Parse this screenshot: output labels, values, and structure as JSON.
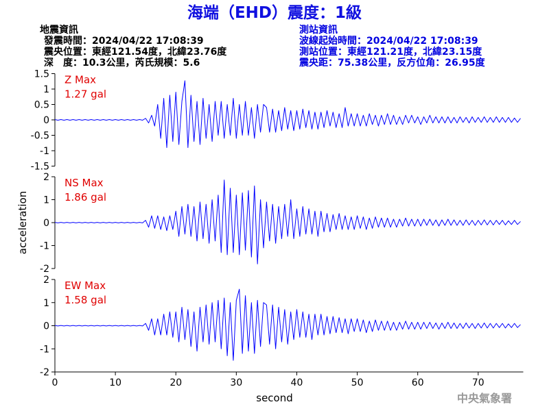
{
  "title": "海端（EHD）震度：1級",
  "header": {
    "left": [
      "地震資訊",
      "發震時間：2024/04/22 17:08:39",
      "震央位置：東經121.54度，北緯23.76度",
      "深　度：10.3公里，芮氏規模：5.6"
    ],
    "right": [
      "測站資訊",
      "波線起始時間：2024/04/22 17:08:39",
      "測站位置：東經121.21度，北緯23.15度",
      "震央距：75.38公里，反方位角：26.95度"
    ]
  },
  "xlabel": "second",
  "ylabel": "acceleration",
  "footer": "中央氣象署",
  "chart_data": [
    {
      "type": "line",
      "label": "Z Max",
      "max_label": "1.27 gal",
      "color": "#0000ff",
      "xlim": [
        0,
        77
      ],
      "xticks": [
        0,
        10,
        20,
        30,
        40,
        50,
        60,
        70
      ],
      "ylim": [
        -1.5,
        1.5
      ],
      "yticks": [
        -1.5,
        -1,
        -0.5,
        0,
        0.5,
        1,
        1.5
      ],
      "x": [
        0,
        0.5,
        1,
        1.5,
        2,
        2.5,
        3,
        3.5,
        4,
        4.5,
        5,
        5.5,
        6,
        6.5,
        7,
        7.5,
        8,
        8.5,
        9,
        9.5,
        10,
        10.5,
        11,
        11.5,
        12,
        12.5,
        13,
        13.5,
        14,
        14.5,
        15,
        15.5,
        16,
        16.5,
        17,
        17.5,
        18,
        18.5,
        19,
        19.5,
        20,
        20.5,
        21,
        21.5,
        22,
        22.5,
        23,
        23.5,
        24,
        24.5,
        25,
        25.5,
        26,
        26.5,
        27,
        27.5,
        28,
        28.5,
        29,
        29.5,
        30,
        30.5,
        31,
        31.5,
        32,
        32.5,
        33,
        33.5,
        34,
        34.5,
        35,
        35.5,
        36,
        36.5,
        37,
        37.5,
        38,
        38.5,
        39,
        39.5,
        40,
        40.5,
        41,
        41.5,
        42,
        42.5,
        43,
        43.5,
        44,
        44.5,
        45,
        45.5,
        46,
        46.5,
        47,
        47.5,
        48,
        48.5,
        49,
        49.5,
        50,
        50.5,
        51,
        51.5,
        52,
        52.5,
        53,
        53.5,
        54,
        54.5,
        55,
        55.5,
        56,
        56.5,
        57,
        57.5,
        58,
        58.5,
        59,
        59.5,
        60,
        60.5,
        61,
        61.5,
        62,
        62.5,
        63,
        63.5,
        64,
        64.5,
        65,
        65.5,
        66,
        66.5,
        67,
        67.5,
        68,
        68.5,
        69,
        69.5,
        70,
        70.5,
        71,
        71.5,
        72,
        72.5,
        73,
        73.5,
        74,
        74.5,
        75,
        75.5,
        76,
        76.5,
        77
      ],
      "values": [
        0.01,
        -0.01,
        0.01,
        -0.01,
        0.01,
        -0.01,
        0.01,
        -0.01,
        0.01,
        -0.01,
        0.01,
        -0.01,
        0.01,
        -0.01,
        0.01,
        -0.01,
        0.01,
        -0.01,
        0.01,
        -0.01,
        0.01,
        -0.01,
        0.01,
        -0.01,
        0.01,
        -0.01,
        0.01,
        -0.01,
        0.01,
        -0.01,
        0.05,
        -0.1,
        0.15,
        -0.2,
        0.5,
        -0.6,
        0.7,
        -0.9,
        0.8,
        -0.7,
        0.9,
        -0.8,
        0.6,
        1.27,
        -0.9,
        0.8,
        -0.7,
        0.6,
        -0.8,
        0.7,
        -0.6,
        0.5,
        -0.7,
        0.6,
        -0.5,
        0.6,
        -0.6,
        0.5,
        -0.5,
        0.7,
        -0.6,
        0.5,
        -0.5,
        0.6,
        -0.5,
        0.4,
        -0.6,
        0.5,
        -0.4,
        0.5,
        0.4,
        -0.4,
        0.35,
        -0.4,
        0.3,
        -0.35,
        0.4,
        -0.3,
        0.3,
        -0.35,
        0.3,
        -0.3,
        0.35,
        -0.25,
        0.3,
        -0.3,
        0.25,
        -0.3,
        0.25,
        -0.25,
        0.3,
        -0.2,
        0.25,
        -0.25,
        0.2,
        -0.25,
        0.4,
        -0.2,
        0.2,
        -0.2,
        0.2,
        -0.2,
        0.15,
        -0.2,
        0.2,
        -0.15,
        0.15,
        -0.2,
        0.15,
        -0.15,
        0.2,
        -0.15,
        0.15,
        -0.15,
        0.1,
        -0.15,
        0.15,
        -0.1,
        0.15,
        -0.1,
        0.1,
        -0.15,
        0.1,
        -0.1,
        0.15,
        -0.1,
        0.1,
        -0.1,
        0.1,
        -0.1,
        0.1,
        -0.1,
        0.08,
        -0.1,
        0.1,
        -0.08,
        0.08,
        -0.1,
        0.1,
        -0.08,
        0.08,
        -0.08,
        0.1,
        -0.08,
        0.08,
        -0.08,
        0.1,
        -0.08,
        0.08,
        -0.08,
        0.08,
        -0.08,
        0.06,
        -0.08,
        0.05
      ]
    },
    {
      "type": "line",
      "label": "NS Max",
      "max_label": "1.86 gal",
      "color": "#0000ff",
      "xlim": [
        0,
        77
      ],
      "xticks": [
        0,
        10,
        20,
        30,
        40,
        50,
        60,
        70
      ],
      "ylim": [
        -2,
        2
      ],
      "yticks": [
        -2,
        -1,
        0,
        1,
        2
      ],
      "x": [
        0,
        0.5,
        1,
        1.5,
        2,
        2.5,
        3,
        3.5,
        4,
        4.5,
        5,
        5.5,
        6,
        6.5,
        7,
        7.5,
        8,
        8.5,
        9,
        9.5,
        10,
        10.5,
        11,
        11.5,
        12,
        12.5,
        13,
        13.5,
        14,
        14.5,
        15,
        15.5,
        16,
        16.5,
        17,
        17.5,
        18,
        18.5,
        19,
        19.5,
        20,
        20.5,
        21,
        21.5,
        22,
        22.5,
        23,
        23.5,
        24,
        24.5,
        25,
        25.5,
        26,
        26.5,
        27,
        27.5,
        28,
        28.5,
        29,
        29.5,
        30,
        30.5,
        31,
        31.5,
        32,
        32.5,
        33,
        33.5,
        34,
        34.5,
        35,
        35.5,
        36,
        36.5,
        37,
        37.5,
        38,
        38.5,
        39,
        39.5,
        40,
        40.5,
        41,
        41.5,
        42,
        42.5,
        43,
        43.5,
        44,
        44.5,
        45,
        45.5,
        46,
        46.5,
        47,
        47.5,
        48,
        48.5,
        49,
        49.5,
        50,
        50.5,
        51,
        51.5,
        52,
        52.5,
        53,
        53.5,
        54,
        54.5,
        55,
        55.5,
        56,
        56.5,
        57,
        57.5,
        58,
        58.5,
        59,
        59.5,
        60,
        60.5,
        61,
        61.5,
        62,
        62.5,
        63,
        63.5,
        64,
        64.5,
        65,
        65.5,
        66,
        66.5,
        67,
        67.5,
        68,
        68.5,
        69,
        69.5,
        70,
        70.5,
        71,
        71.5,
        72,
        72.5,
        73,
        73.5,
        74,
        74.5,
        75,
        75.5,
        76,
        76.5,
        77
      ],
      "values": [
        0.01,
        -0.01,
        0.01,
        -0.01,
        0.01,
        -0.01,
        0.01,
        -0.01,
        0.01,
        -0.01,
        0.01,
        -0.01,
        0.01,
        -0.01,
        0.01,
        -0.01,
        0.01,
        -0.01,
        0.01,
        -0.01,
        0.01,
        -0.01,
        0.01,
        -0.01,
        0.01,
        -0.01,
        0.01,
        -0.01,
        0.01,
        -0.01,
        0.1,
        -0.2,
        0.3,
        -0.25,
        0.3,
        -0.3,
        0.25,
        -0.35,
        0.3,
        -0.3,
        0.5,
        -0.6,
        0.7,
        -0.5,
        0.8,
        -0.6,
        0.7,
        -0.8,
        0.9,
        -0.7,
        0.8,
        -0.9,
        1.0,
        -0.8,
        1.2,
        -1.3,
        1.86,
        -1.4,
        1.5,
        -1.3,
        1.2,
        -1.4,
        1.3,
        -1.2,
        1.4,
        -1.5,
        1.6,
        -1.8,
        1.0,
        -1.1,
        0.9,
        -0.8,
        0.8,
        -0.9,
        0.7,
        -0.7,
        0.8,
        -0.6,
        1.0,
        -0.7,
        0.6,
        -0.6,
        0.7,
        -0.5,
        0.6,
        -0.5,
        0.5,
        -0.6,
        0.5,
        -0.4,
        0.4,
        -0.4,
        0.35,
        -0.3,
        0.4,
        -0.3,
        0.3,
        -0.3,
        0.25,
        -0.3,
        0.3,
        -0.25,
        0.25,
        -0.3,
        0.2,
        -0.25,
        0.25,
        -0.2,
        0.2,
        -0.2,
        0.2,
        -0.2,
        0.15,
        -0.2,
        0.15,
        -0.15,
        0.2,
        -0.15,
        0.15,
        -0.15,
        0.15,
        -0.15,
        0.15,
        -0.12,
        0.15,
        -0.12,
        0.12,
        -0.15,
        0.12,
        -0.12,
        0.15,
        -0.12,
        0.12,
        -0.12,
        0.1,
        -0.12,
        0.12,
        -0.1,
        0.1,
        -0.12,
        0.1,
        -0.1,
        0.12,
        -0.1,
        0.1,
        -0.1,
        0.1,
        -0.08,
        0.1,
        -0.1,
        0.08,
        -0.08,
        0.1,
        -0.08,
        0.05
      ]
    },
    {
      "type": "line",
      "label": "EW Max",
      "max_label": "1.58 gal",
      "color": "#0000ff",
      "xlim": [
        0,
        77
      ],
      "xticks": [
        0,
        10,
        20,
        30,
        40,
        50,
        60,
        70
      ],
      "ylim": [
        -2,
        2
      ],
      "yticks": [
        -2,
        -1,
        0,
        1,
        2
      ],
      "x": [
        0,
        0.5,
        1,
        1.5,
        2,
        2.5,
        3,
        3.5,
        4,
        4.5,
        5,
        5.5,
        6,
        6.5,
        7,
        7.5,
        8,
        8.5,
        9,
        9.5,
        10,
        10.5,
        11,
        11.5,
        12,
        12.5,
        13,
        13.5,
        14,
        14.5,
        15,
        15.5,
        16,
        16.5,
        17,
        17.5,
        18,
        18.5,
        19,
        19.5,
        20,
        20.5,
        21,
        21.5,
        22,
        22.5,
        23,
        23.5,
        24,
        24.5,
        25,
        25.5,
        26,
        26.5,
        27,
        27.5,
        28,
        28.5,
        29,
        29.5,
        30,
        30.5,
        31,
        31.5,
        32,
        32.5,
        33,
        33.5,
        34,
        34.5,
        35,
        35.5,
        36,
        36.5,
        37,
        37.5,
        38,
        38.5,
        39,
        39.5,
        40,
        40.5,
        41,
        41.5,
        42,
        42.5,
        43,
        43.5,
        44,
        44.5,
        45,
        45.5,
        46,
        46.5,
        47,
        47.5,
        48,
        48.5,
        49,
        49.5,
        50,
        50.5,
        51,
        51.5,
        52,
        52.5,
        53,
        53.5,
        54,
        54.5,
        55,
        55.5,
        56,
        56.5,
        57,
        57.5,
        58,
        58.5,
        59,
        59.5,
        60,
        60.5,
        61,
        61.5,
        62,
        62.5,
        63,
        63.5,
        64,
        64.5,
        65,
        65.5,
        66,
        66.5,
        67,
        67.5,
        68,
        68.5,
        69,
        69.5,
        70,
        70.5,
        71,
        71.5,
        72,
        72.5,
        73,
        73.5,
        74,
        74.5,
        75,
        75.5,
        76,
        76.5,
        77
      ],
      "values": [
        0.01,
        -0.01,
        0.01,
        -0.01,
        0.01,
        -0.01,
        0.01,
        -0.01,
        0.01,
        -0.01,
        0.01,
        -0.01,
        0.01,
        -0.01,
        0.01,
        -0.01,
        0.01,
        -0.01,
        0.01,
        -0.01,
        0.01,
        -0.01,
        0.01,
        -0.01,
        0.01,
        -0.01,
        0.01,
        -0.01,
        0.01,
        -0.01,
        0.1,
        -0.2,
        0.3,
        -0.4,
        0.3,
        -0.4,
        0.5,
        -0.4,
        0.6,
        -0.5,
        0.6,
        -0.7,
        0.8,
        -0.6,
        0.7,
        -0.9,
        0.6,
        -1.1,
        0.8,
        -0.7,
        0.9,
        -0.8,
        1.0,
        -0.7,
        1.1,
        -1.0,
        1.2,
        -1.3,
        1.0,
        -1.5,
        1.1,
        1.58,
        -1.2,
        1.3,
        -1.1,
        1.0,
        -1.2,
        1.1,
        -0.9,
        1.0,
        0.9,
        -0.8,
        0.9,
        -1.0,
        0.8,
        -0.7,
        0.7,
        -0.8,
        0.6,
        -0.6,
        0.7,
        -0.5,
        0.6,
        -0.5,
        0.5,
        -0.6,
        0.5,
        -0.4,
        0.5,
        -0.4,
        0.4,
        -0.35,
        0.4,
        -0.3,
        0.35,
        -0.3,
        0.3,
        -0.35,
        0.3,
        -0.25,
        0.3,
        -0.25,
        0.25,
        -0.3,
        0.2,
        -0.25,
        0.25,
        -0.2,
        0.2,
        -0.2,
        0.2,
        -0.2,
        0.15,
        -0.2,
        0.15,
        -0.15,
        0.2,
        -0.15,
        0.15,
        -0.15,
        0.15,
        -0.15,
        0.15,
        -0.12,
        0.15,
        -0.12,
        0.12,
        -0.15,
        0.12,
        -0.12,
        0.15,
        -0.12,
        0.12,
        -0.12,
        0.1,
        -0.12,
        0.12,
        -0.1,
        0.1,
        -0.12,
        0.1,
        -0.1,
        0.12,
        -0.1,
        0.1,
        -0.1,
        0.1,
        -0.08,
        0.1,
        -0.1,
        0.08,
        -0.08,
        0.1,
        -0.08,
        0.05
      ]
    }
  ]
}
